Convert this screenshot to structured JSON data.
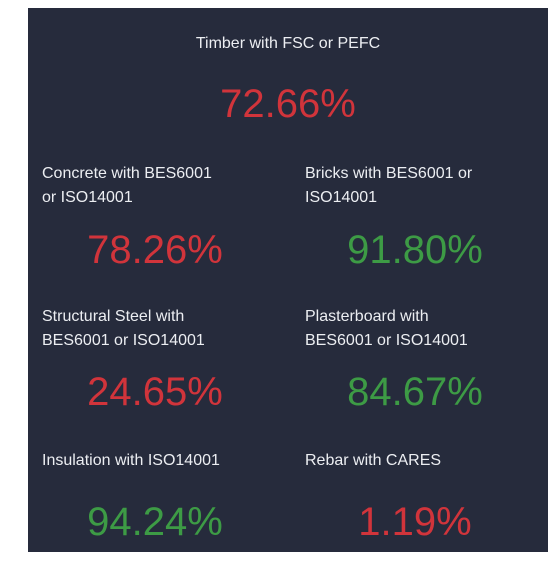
{
  "cards": [
    {
      "label": [
        "Timber with FSC or PEFC"
      ],
      "value": "72.66%",
      "color": "#d1343b"
    },
    {
      "label": [
        "Concrete with BES6001",
        "or ISO14001"
      ],
      "value": "78.26%",
      "color": "#d1343b"
    },
    {
      "label": [
        "Bricks with BES6001 or",
        "ISO14001"
      ],
      "value": "91.80%",
      "color": "#3d9b45"
    },
    {
      "label": [
        "Structural Steel with",
        "BES6001 or ISO14001"
      ],
      "value": "24.65%",
      "color": "#d1343b"
    },
    {
      "label": [
        "Plasterboard with",
        "BES6001 or ISO14001"
      ],
      "value": "84.67%",
      "color": "#3d9b45"
    },
    {
      "label": [
        "Insulation with ISO14001"
      ],
      "value": "94.24%",
      "color": "#3d9b45"
    },
    {
      "label": [
        "Rebar with CARES"
      ],
      "value": "1.19%",
      "color": "#d1343b"
    }
  ]
}
